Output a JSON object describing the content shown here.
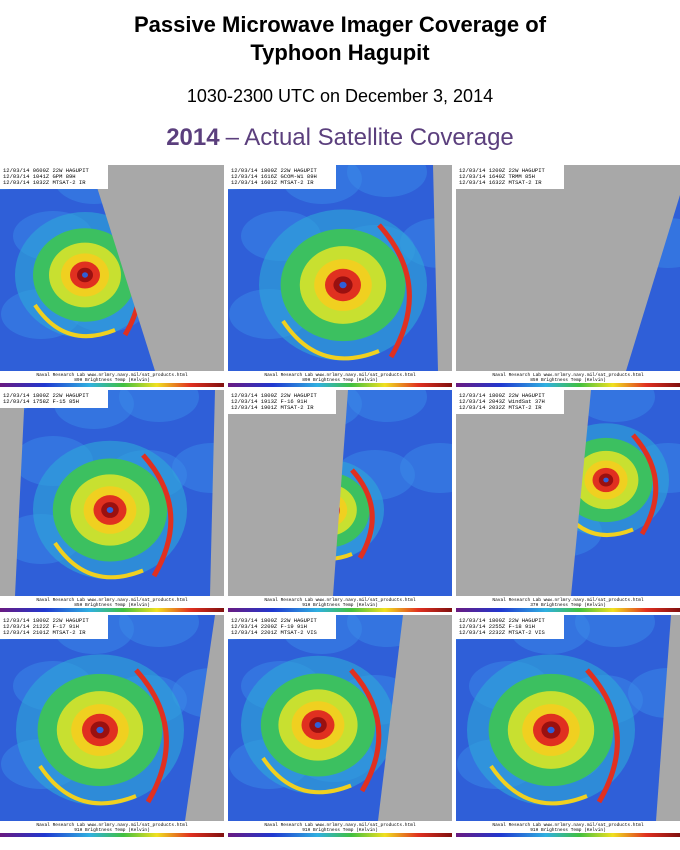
{
  "header": {
    "title_line1": "Passive Microwave Imager Coverage of",
    "title_line2": "Typhoon Hagupit",
    "subtitle": "1030-2300 UTC on December 3, 2014",
    "heading_year": "2014",
    "heading_text": "– Actual Satellite Coverage"
  },
  "panels": [
    {
      "lines": [
        "12/03/14 0600Z 22W HAGUPIT",
        "12/03/14 1041Z GPM 89H",
        "12/03/14 1032Z MTSAT-2 IR"
      ],
      "credit": "Naval Research Lab  www.nrlmry.navy.mil/sat_products.html",
      "scale": "89H Brightness Temp (Kelvin)"
    },
    {
      "lines": [
        "12/03/14 1800Z 22W HAGUPIT",
        "12/03/14 1616Z GCOM-W1 89H",
        "12/03/14 1601Z MTSAT-2 IR"
      ],
      "credit": "Naval Research Lab  www.nrlmry.navy.mil/sat_products.html",
      "scale": "89H Brightness Temp (Kelvin)"
    },
    {
      "lines": [
        "12/03/14 1200Z 22W HAGUPIT",
        "12/03/14 1640Z TRMM 85H",
        "12/03/14 1632Z MTSAT-2 IR"
      ],
      "credit": "Naval Research Lab  www.nrlmry.navy.mil/sat_products.html",
      "scale": "85H Brightness Temp (Kelvin)"
    },
    {
      "lines": [
        "12/03/14 1800Z 22W HAGUPIT",
        "12/03/14 1758Z F-15 85H"
      ],
      "credit": "Naval Research Lab  www.nrlmry.navy.mil/sat_products.html",
      "scale": "85H Brightness Temp (Kelvin)"
    },
    {
      "lines": [
        "12/03/14 1800Z 22W HAGUPIT",
        "12/03/14 1913Z F-16 91H",
        "12/03/14 1901Z MTSAT-2 IR"
      ],
      "credit": "Naval Research Lab  www.nrlmry.navy.mil/sat_products.html",
      "scale": "91H Brightness Temp (Kelvin)"
    },
    {
      "lines": [
        "12/03/14 1800Z 22W HAGUPIT",
        "12/03/14 2043Z WindSat 37H",
        "12/03/14 2032Z MTSAT-2 IR"
      ],
      "credit": "Naval Research Lab  www.nrlmry.navy.mil/sat_products.html",
      "scale": "37H Brightness Temp (Kelvin)"
    },
    {
      "lines": [
        "12/03/14 1800Z 22W HAGUPIT",
        "12/03/14 2122Z F-17 91H",
        "12/03/14 2101Z MTSAT-2 IR"
      ],
      "credit": "Naval Research Lab  www.nrlmry.navy.mil/sat_products.html",
      "scale": "91H Brightness Temp (Kelvin)"
    },
    {
      "lines": [
        "12/03/14 1800Z 22W HAGUPIT",
        "12/03/14 2200Z F-19 91H",
        "12/03/14 2201Z MTSAT-2 VIS"
      ],
      "credit": "Naval Research Lab  www.nrlmry.navy.mil/sat_products.html",
      "scale": "91H Brightness Temp (Kelvin)"
    },
    {
      "lines": [
        "12/03/14 1800Z 22W HAGUPIT",
        "12/03/14 2255Z F-18 91H",
        "12/03/14 2232Z MTSAT-2 VIS"
      ],
      "credit": "Naval Research Lab  www.nrlmry.navy.mil/sat_products.html",
      "scale": "91H Brightness Temp (Kelvin)"
    }
  ]
}
